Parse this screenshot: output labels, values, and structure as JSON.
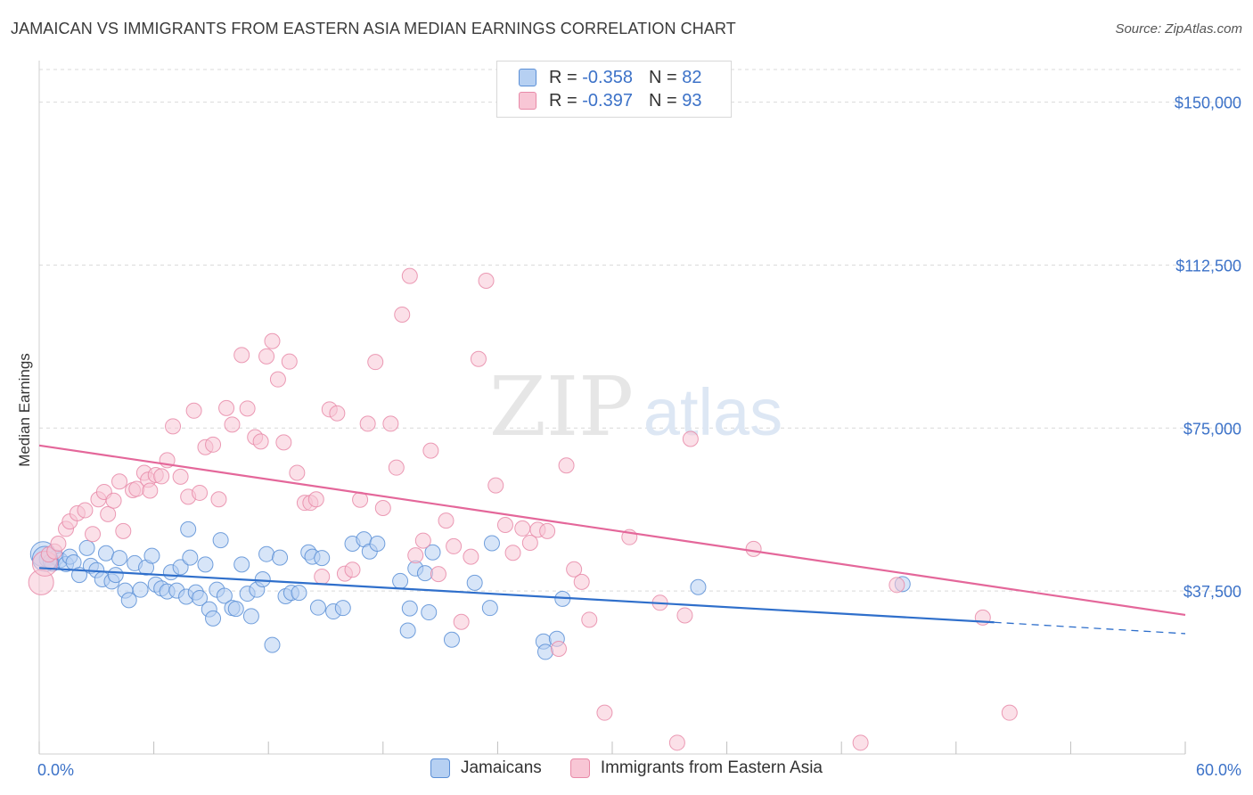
{
  "title": "JAMAICAN VS IMMIGRANTS FROM EASTERN ASIA MEDIAN EARNINGS CORRELATION CHART",
  "source": "Source: ZipAtlas.com",
  "watermark": {
    "zip": "ZIP",
    "atlas": "atlas"
  },
  "legend_stats": [
    {
      "r_label": "R =",
      "r_value": "-0.358",
      "n_label": "N =",
      "n_value": "82"
    },
    {
      "r_label": "R =",
      "r_value": "-0.397",
      "n_label": "N =",
      "n_value": "93"
    }
  ],
  "colors": {
    "blue_fill": "#b6d0f2",
    "blue_stroke": "#5b8fd6",
    "blue_line": "#2f6fcb",
    "pink_fill": "#f8c6d5",
    "pink_stroke": "#e88aa8",
    "pink_line": "#e4679a",
    "value_text": "#3c72c8",
    "grid": "#d9d9d9"
  },
  "chart_data": {
    "type": "scatter",
    "xlabel": "",
    "ylabel": "Median Earnings",
    "xlim": [
      0,
      60
    ],
    "ylim": [
      0,
      157500
    ],
    "x_tick_labels": [
      {
        "value": 0,
        "label": "0.0%"
      },
      {
        "value": 60,
        "label": "60.0%"
      }
    ],
    "y_ticks": [
      {
        "value": 37500,
        "label": "$37,500"
      },
      {
        "value": 75000,
        "label": "$75,000"
      },
      {
        "value": 112500,
        "label": "$112,500"
      },
      {
        "value": 150000,
        "label": "$150,000"
      }
    ],
    "grid": true,
    "legend_position": "bottom",
    "series": [
      {
        "name": "Jamaicans",
        "color": "#5b8fd6",
        "trend": {
          "x0": 0,
          "y0": 42800,
          "x1": 50,
          "y1": 30300,
          "dashed_to_x": 60,
          "dashed_to_y": 27700
        },
        "points": [
          [
            0.2,
            46000
          ],
          [
            0.4,
            44800
          ],
          [
            0.7,
            43800
          ],
          [
            0.9,
            45200
          ],
          [
            1.1,
            44600
          ],
          [
            1.4,
            43700
          ],
          [
            1.6,
            45400
          ],
          [
            1.8,
            44100
          ],
          [
            2.1,
            41200
          ],
          [
            2.5,
            47400
          ],
          [
            2.7,
            43300
          ],
          [
            3.0,
            42300
          ],
          [
            3.3,
            40200
          ],
          [
            3.5,
            46200
          ],
          [
            3.8,
            39700
          ],
          [
            4.0,
            41200
          ],
          [
            4.2,
            45100
          ],
          [
            4.5,
            37600
          ],
          [
            4.7,
            35400
          ],
          [
            5.0,
            43900
          ],
          [
            5.3,
            37800
          ],
          [
            5.6,
            42900
          ],
          [
            5.9,
            45600
          ],
          [
            6.1,
            39000
          ],
          [
            6.4,
            38100
          ],
          [
            6.7,
            37400
          ],
          [
            6.9,
            41800
          ],
          [
            7.2,
            37600
          ],
          [
            7.4,
            43000
          ],
          [
            7.7,
            36200
          ],
          [
            7.8,
            51700
          ],
          [
            7.9,
            45200
          ],
          [
            8.2,
            37200
          ],
          [
            8.4,
            35900
          ],
          [
            8.7,
            43600
          ],
          [
            8.9,
            33300
          ],
          [
            9.1,
            31200
          ],
          [
            9.3,
            37800
          ],
          [
            9.5,
            49200
          ],
          [
            9.7,
            36400
          ],
          [
            10.1,
            33600
          ],
          [
            10.3,
            33400
          ],
          [
            10.6,
            43600
          ],
          [
            10.9,
            36900
          ],
          [
            11.1,
            31700
          ],
          [
            11.4,
            37800
          ],
          [
            11.7,
            40200
          ],
          [
            11.9,
            46000
          ],
          [
            12.2,
            25100
          ],
          [
            12.6,
            45200
          ],
          [
            12.9,
            36300
          ],
          [
            13.2,
            37100
          ],
          [
            13.6,
            37100
          ],
          [
            14.1,
            46400
          ],
          [
            14.3,
            45400
          ],
          [
            14.6,
            33700
          ],
          [
            14.8,
            45100
          ],
          [
            15.4,
            32800
          ],
          [
            15.9,
            33600
          ],
          [
            16.4,
            48400
          ],
          [
            17.0,
            49400
          ],
          [
            17.3,
            46600
          ],
          [
            17.7,
            48400
          ],
          [
            18.9,
            39800
          ],
          [
            19.3,
            28400
          ],
          [
            19.4,
            33500
          ],
          [
            19.7,
            42700
          ],
          [
            20.2,
            41600
          ],
          [
            20.4,
            32600
          ],
          [
            20.6,
            46400
          ],
          [
            21.6,
            26300
          ],
          [
            22.8,
            39400
          ],
          [
            23.6,
            33600
          ],
          [
            23.7,
            48500
          ],
          [
            26.4,
            25900
          ],
          [
            26.5,
            23500
          ],
          [
            27.1,
            26500
          ],
          [
            27.4,
            35700
          ],
          [
            34.5,
            38400
          ],
          [
            45.2,
            39100
          ],
          [
            0.6,
            44300
          ],
          [
            0.3,
            44900
          ]
        ]
      },
      {
        "name": "Immigrants from Eastern Asia",
        "color": "#e88aa8",
        "trend": {
          "x0": 0,
          "y0": 71000,
          "x1": 60,
          "y1": 32000
        },
        "points": [
          [
            0.1,
            39500
          ],
          [
            0.3,
            43800
          ],
          [
            0.5,
            45900
          ],
          [
            0.8,
            46600
          ],
          [
            1.0,
            48400
          ],
          [
            1.4,
            51800
          ],
          [
            1.6,
            53500
          ],
          [
            2.0,
            55400
          ],
          [
            2.4,
            56100
          ],
          [
            2.8,
            50600
          ],
          [
            3.1,
            58600
          ],
          [
            3.4,
            60300
          ],
          [
            3.6,
            55200
          ],
          [
            3.9,
            58300
          ],
          [
            4.2,
            62700
          ],
          [
            4.4,
            51300
          ],
          [
            4.9,
            60700
          ],
          [
            5.1,
            61000
          ],
          [
            5.5,
            64700
          ],
          [
            5.7,
            63100
          ],
          [
            5.8,
            60600
          ],
          [
            6.1,
            64200
          ],
          [
            6.4,
            63900
          ],
          [
            6.7,
            67600
          ],
          [
            7.0,
            75400
          ],
          [
            7.4,
            63800
          ],
          [
            7.8,
            59200
          ],
          [
            8.1,
            79000
          ],
          [
            8.4,
            60100
          ],
          [
            8.7,
            70600
          ],
          [
            9.1,
            71200
          ],
          [
            9.4,
            58600
          ],
          [
            9.8,
            79600
          ],
          [
            10.1,
            75800
          ],
          [
            10.6,
            91800
          ],
          [
            10.9,
            79500
          ],
          [
            11.3,
            72900
          ],
          [
            11.6,
            71900
          ],
          [
            11.9,
            91500
          ],
          [
            12.2,
            95000
          ],
          [
            12.5,
            86200
          ],
          [
            12.8,
            71700
          ],
          [
            13.1,
            90300
          ],
          [
            13.5,
            64700
          ],
          [
            13.9,
            57800
          ],
          [
            14.2,
            57800
          ],
          [
            14.5,
            58600
          ],
          [
            14.8,
            40800
          ],
          [
            15.2,
            79300
          ],
          [
            15.6,
            78400
          ],
          [
            16.0,
            41500
          ],
          [
            16.4,
            42400
          ],
          [
            16.8,
            58500
          ],
          [
            17.2,
            76000
          ],
          [
            17.6,
            90200
          ],
          [
            18.0,
            56600
          ],
          [
            18.4,
            76000
          ],
          [
            18.7,
            65900
          ],
          [
            19.0,
            101100
          ],
          [
            19.4,
            110000
          ],
          [
            19.7,
            45700
          ],
          [
            20.1,
            49100
          ],
          [
            20.5,
            69800
          ],
          [
            20.9,
            41400
          ],
          [
            21.3,
            53700
          ],
          [
            21.7,
            47800
          ],
          [
            22.1,
            30400
          ],
          [
            22.6,
            45400
          ],
          [
            23.0,
            90900
          ],
          [
            23.4,
            108900
          ],
          [
            23.9,
            61800
          ],
          [
            24.4,
            52700
          ],
          [
            24.8,
            46300
          ],
          [
            25.3,
            51900
          ],
          [
            25.7,
            48600
          ],
          [
            26.1,
            51600
          ],
          [
            26.6,
            51300
          ],
          [
            27.2,
            24200
          ],
          [
            27.6,
            66400
          ],
          [
            28.0,
            42500
          ],
          [
            28.4,
            39600
          ],
          [
            28.8,
            30900
          ],
          [
            29.6,
            9500
          ],
          [
            30.9,
            49900
          ],
          [
            32.5,
            34800
          ],
          [
            33.4,
            2600
          ],
          [
            33.8,
            31900
          ],
          [
            34.1,
            72500
          ],
          [
            37.4,
            47200
          ],
          [
            43.0,
            2600
          ],
          [
            44.9,
            38900
          ],
          [
            49.4,
            31400
          ],
          [
            50.8,
            9500
          ]
        ]
      }
    ]
  }
}
